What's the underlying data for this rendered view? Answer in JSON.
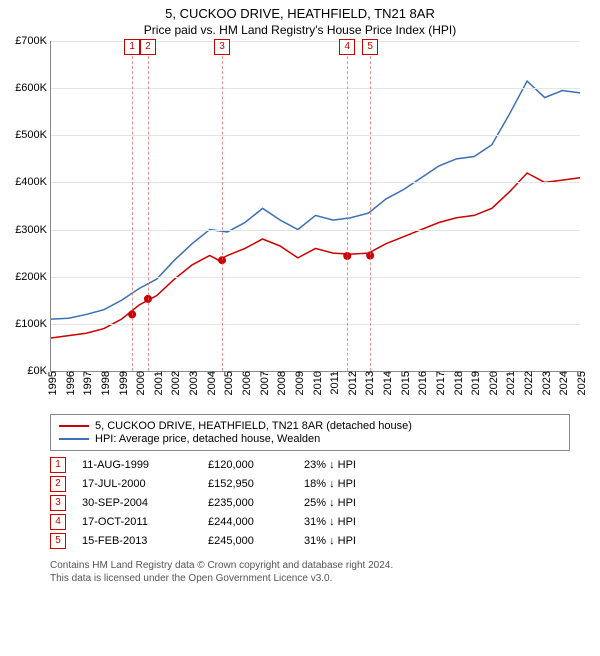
{
  "title": "5, CUCKOO DRIVE, HEATHFIELD, TN21 8AR",
  "subtitle": "Price paid vs. HM Land Registry's House Price Index (HPI)",
  "chart": {
    "type": "line",
    "background_color": "#ffffff",
    "grid_color": "#e5e5e5",
    "axis_color": "#888888",
    "x_years": [
      1995,
      1996,
      1997,
      1998,
      1999,
      2000,
      2001,
      2002,
      2003,
      2004,
      2005,
      2006,
      2007,
      2008,
      2009,
      2010,
      2011,
      2012,
      2013,
      2014,
      2015,
      2016,
      2017,
      2018,
      2019,
      2020,
      2021,
      2022,
      2023,
      2024,
      2025
    ],
    "xlim": [
      1995,
      2025
    ],
    "ylim": [
      0,
      700
    ],
    "ytick_step": 100,
    "ylabel_prefix": "£",
    "ylabel_suffix": "K",
    "series": [
      {
        "name": "5, CUCKOO DRIVE, HEATHFIELD, TN21 8AR (detached house)",
        "color": "#cc0000",
        "line_width": 1.5,
        "points": [
          [
            1995,
            70
          ],
          [
            1996,
            75
          ],
          [
            1997,
            80
          ],
          [
            1998,
            90
          ],
          [
            1999,
            110
          ],
          [
            2000,
            140
          ],
          [
            2001,
            160
          ],
          [
            2002,
            195
          ],
          [
            2003,
            225
          ],
          [
            2004,
            245
          ],
          [
            2004.5,
            235
          ],
          [
            2005,
            245
          ],
          [
            2006,
            260
          ],
          [
            2007,
            280
          ],
          [
            2008,
            265
          ],
          [
            2009,
            240
          ],
          [
            2010,
            260
          ],
          [
            2011,
            250
          ],
          [
            2012,
            248
          ],
          [
            2013,
            250
          ],
          [
            2014,
            270
          ],
          [
            2015,
            285
          ],
          [
            2016,
            300
          ],
          [
            2017,
            315
          ],
          [
            2018,
            325
          ],
          [
            2019,
            330
          ],
          [
            2020,
            345
          ],
          [
            2021,
            380
          ],
          [
            2022,
            420
          ],
          [
            2023,
            400
          ],
          [
            2024,
            405
          ],
          [
            2025,
            410
          ]
        ]
      },
      {
        "name": "HPI: Average price, detached house, Wealden",
        "color": "#3b6fb6",
        "line_width": 1.5,
        "points": [
          [
            1995,
            110
          ],
          [
            1996,
            112
          ],
          [
            1997,
            120
          ],
          [
            1998,
            130
          ],
          [
            1999,
            150
          ],
          [
            2000,
            175
          ],
          [
            2001,
            195
          ],
          [
            2002,
            235
          ],
          [
            2003,
            270
          ],
          [
            2004,
            300
          ],
          [
            2005,
            295
          ],
          [
            2006,
            315
          ],
          [
            2007,
            345
          ],
          [
            2008,
            320
          ],
          [
            2009,
            300
          ],
          [
            2010,
            330
          ],
          [
            2011,
            320
          ],
          [
            2012,
            325
          ],
          [
            2013,
            335
          ],
          [
            2014,
            365
          ],
          [
            2015,
            385
          ],
          [
            2016,
            410
          ],
          [
            2017,
            435
          ],
          [
            2018,
            450
          ],
          [
            2019,
            455
          ],
          [
            2020,
            480
          ],
          [
            2021,
            545
          ],
          [
            2022,
            615
          ],
          [
            2023,
            580
          ],
          [
            2024,
            595
          ],
          [
            2025,
            590
          ]
        ]
      }
    ],
    "sale_markers": [
      {
        "n": "1",
        "x": 1999.6,
        "y": 120
      },
      {
        "n": "2",
        "x": 2000.5,
        "y": 153
      },
      {
        "n": "3",
        "x": 2004.7,
        "y": 235
      },
      {
        "n": "4",
        "x": 2011.8,
        "y": 244
      },
      {
        "n": "5",
        "x": 2013.1,
        "y": 245
      }
    ],
    "marker_color": "#cc0000",
    "marker_radius": 4
  },
  "legend": {
    "rows": [
      {
        "color": "#cc0000",
        "label": "5, CUCKOO DRIVE, HEATHFIELD, TN21 8AR (detached house)"
      },
      {
        "color": "#3b6fb6",
        "label": "HPI: Average price, detached house, Wealden"
      }
    ]
  },
  "events": [
    {
      "n": "1",
      "date": "11-AUG-1999",
      "price": "£120,000",
      "diff": "23% ↓ HPI"
    },
    {
      "n": "2",
      "date": "17-JUL-2000",
      "price": "£152,950",
      "diff": "18% ↓ HPI"
    },
    {
      "n": "3",
      "date": "30-SEP-2004",
      "price": "£235,000",
      "diff": "25% ↓ HPI"
    },
    {
      "n": "4",
      "date": "17-OCT-2011",
      "price": "£244,000",
      "diff": "31% ↓ HPI"
    },
    {
      "n": "5",
      "date": "15-FEB-2013",
      "price": "£245,000",
      "diff": "31% ↓ HPI"
    }
  ],
  "footer_line1": "Contains HM Land Registry data © Crown copyright and database right 2024.",
  "footer_line2": "This data is licensed under the Open Government Licence v3.0."
}
